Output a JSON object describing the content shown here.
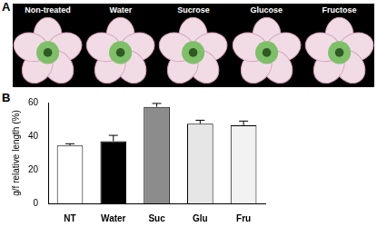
{
  "panel_labels": [
    "A",
    "B"
  ],
  "photo_labels": [
    "Non-treated",
    "Water",
    "Sucrose",
    "Glucose",
    "Fructose"
  ],
  "chart_data": {
    "type": "bar",
    "y_label": "g/f relative length (%)",
    "categories": [
      "NT",
      "Water",
      "Suc",
      "Glu",
      "Fru"
    ],
    "values": [
      34.5,
      37,
      57.5,
      47.5,
      46.5
    ],
    "errors": [
      1,
      3.5,
      2,
      2,
      2.5
    ],
    "colors": [
      "#ffffff",
      "#000000",
      "#8c8c8c",
      "#e6e6e6",
      "#f2f2f2"
    ],
    "ylim": [
      0,
      60
    ],
    "yticks": [
      0,
      20,
      40,
      60
    ],
    "grid": false
  }
}
